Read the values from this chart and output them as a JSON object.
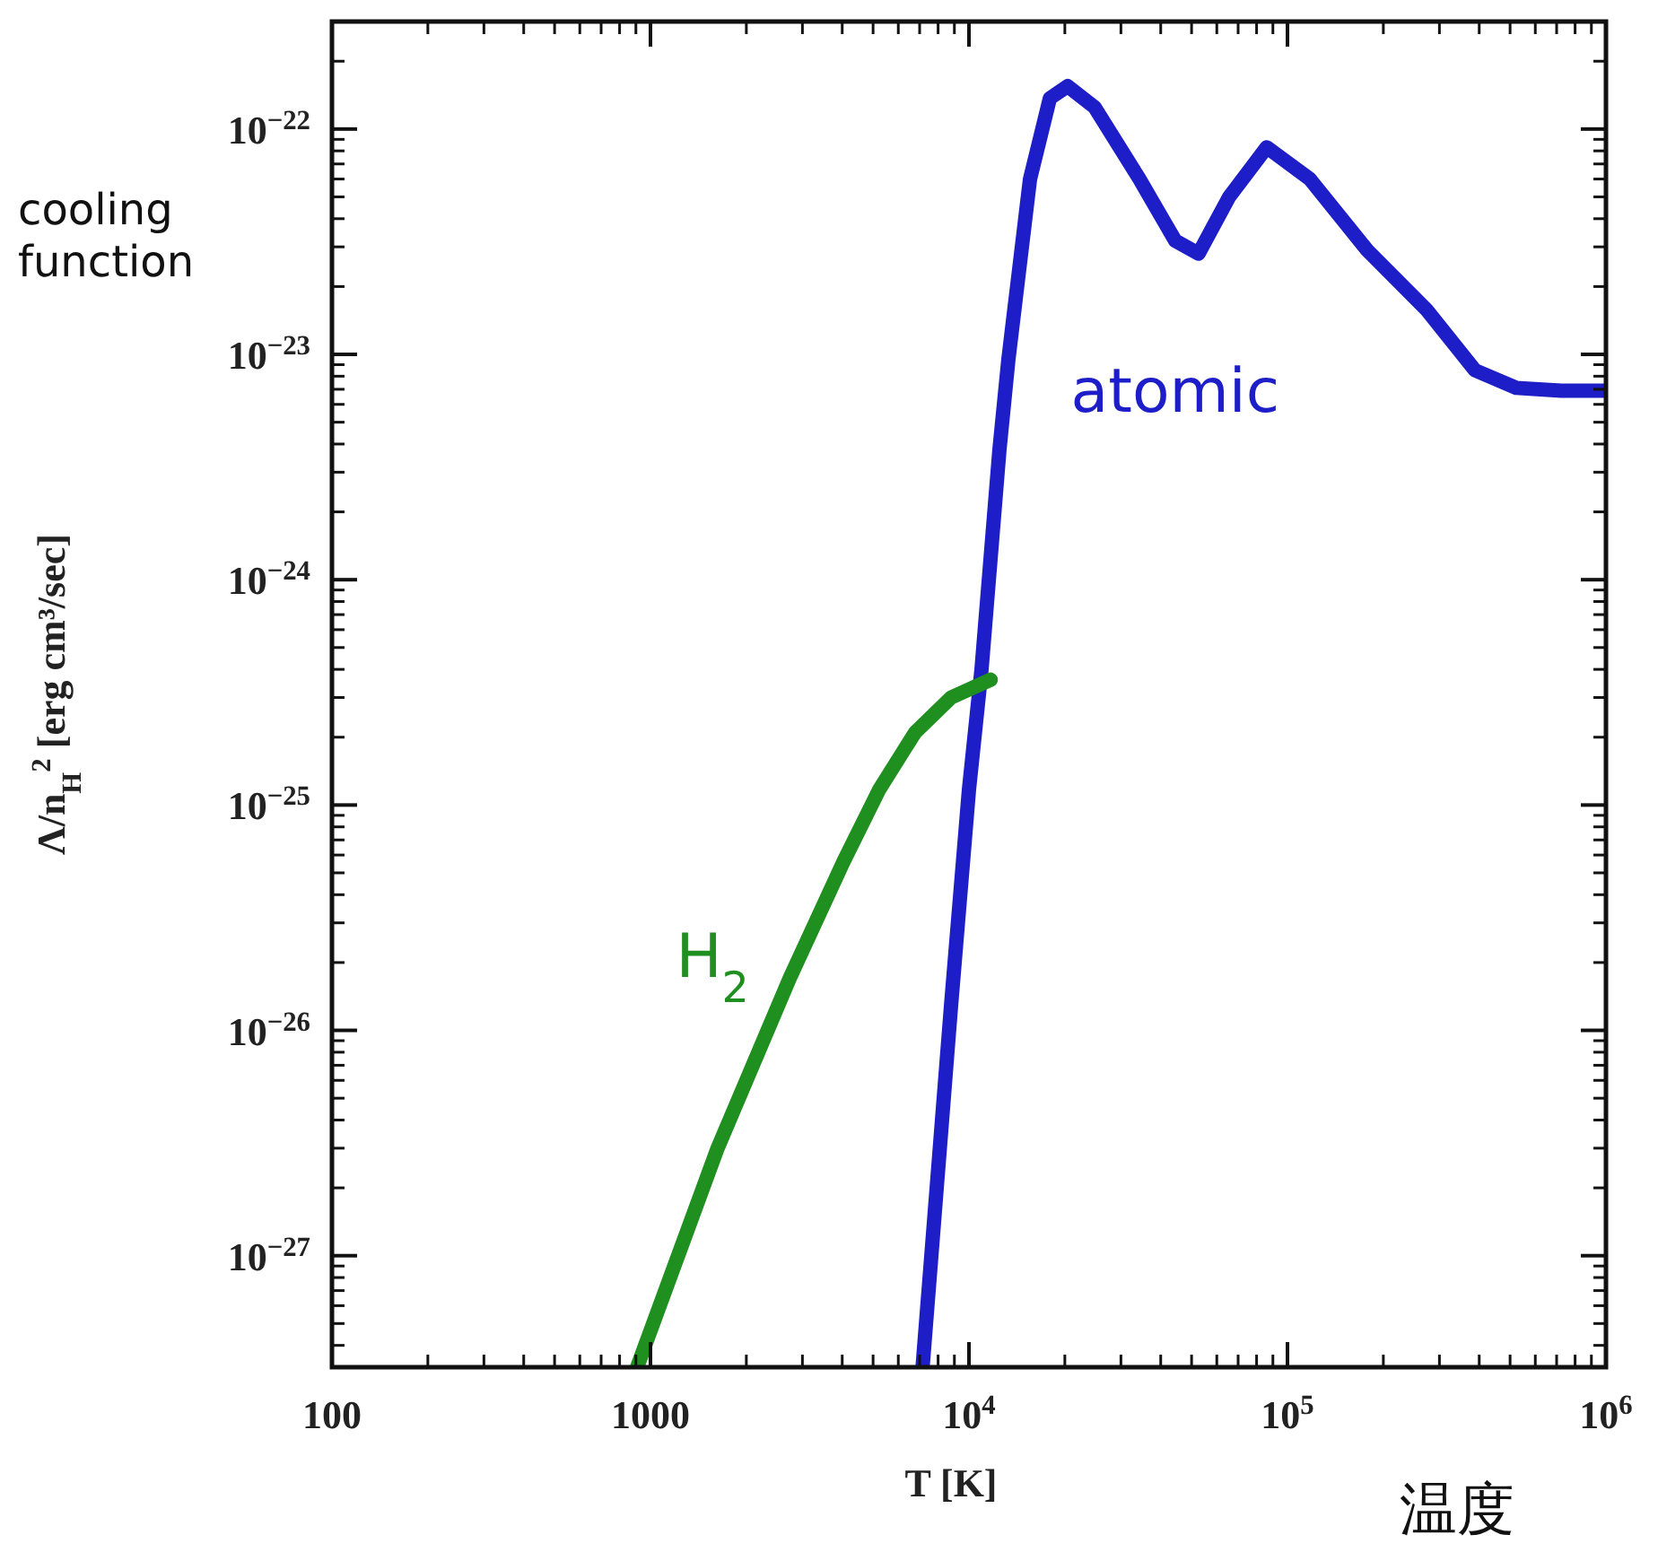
{
  "chart_data": {
    "type": "line",
    "log": "xy",
    "xlabel": "T [K]",
    "ylabel": "Λ/n$_{H}$$^{2}$ [erg cm³/sec]",
    "annotations": [
      "cooling function",
      "温度"
    ],
    "xlim": [
      100,
      1000000
    ],
    "ylim": [
      3.2e-28,
      3e-22
    ],
    "xticks": [
      100,
      1000,
      {
        "value": 10000,
        "label": "10$^{4}$"
      },
      {
        "value": 100000,
        "label": "10$^{5}$"
      },
      {
        "value": 1000000,
        "label": "10$^{6}$"
      }
    ],
    "yticks": [
      {
        "value": 1e-27,
        "label": "10$^{−27}$"
      },
      {
        "value": 1e-26,
        "label": "10$^{−26}$"
      },
      {
        "value": 1e-25,
        "label": "10$^{−25}$"
      },
      {
        "value": 1e-24,
        "label": "10$^{−24}$"
      },
      {
        "value": 1e-23,
        "label": "10$^{−23}$"
      },
      {
        "value": 1e-22,
        "label": "10$^{−22}$"
      }
    ],
    "grid": false,
    "legend": false,
    "series": [
      {
        "name": "atomic",
        "color": "#1e1ec8",
        "x": [
          7150,
          8790,
          10000,
          10950,
          12470,
          13300,
          15550,
          17950,
          20400,
          24800,
          34300,
          44400,
          52600,
          65600,
          86100,
          117500,
          178000,
          273000,
          388000,
          523000,
          723000,
          1000000
        ],
        "values": [
          3.2e-28,
          1.3e-26,
          1.17e-25,
          4e-25,
          3.8e-24,
          9.5e-24,
          6e-23,
          1.37e-22,
          1.55e-22,
          1.25e-22,
          6e-23,
          3.2e-23,
          2.8e-23,
          5e-23,
          8.3e-23,
          6e-23,
          2.9e-23,
          1.58e-23,
          8.5e-24,
          7.1e-24,
          6.9e-24,
          6.9e-24
        ]
      },
      {
        "name": "H$_{2}$",
        "color": "#1f8f1f",
        "x": [
          908,
          1625,
          2735,
          4035,
          5225,
          6775,
          8790,
          11700
        ],
        "values": [
          3.2e-28,
          3e-27,
          1.7e-26,
          5.6e-26,
          1.17e-25,
          2.1e-25,
          3e-25,
          3.6e-25
        ]
      }
    ]
  }
}
